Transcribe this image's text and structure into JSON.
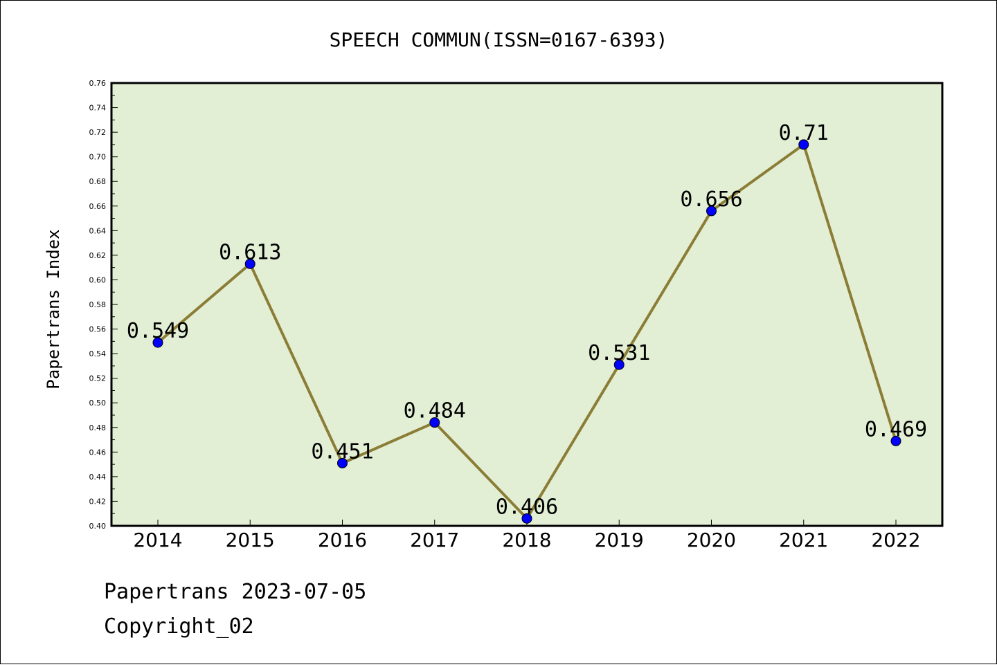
{
  "chart_data": {
    "type": "line",
    "title": "SPEECH COMMUN(ISSN=0167-6393)",
    "xlabel": "",
    "ylabel": "Papertrans Index",
    "categories": [
      "2014",
      "2015",
      "2016",
      "2017",
      "2018",
      "2019",
      "2020",
      "2021",
      "2022"
    ],
    "values": [
      0.549,
      0.613,
      0.451,
      0.484,
      0.406,
      0.531,
      0.656,
      0.71,
      0.469
    ],
    "data_labels": [
      "0.549",
      "0.613",
      "0.451",
      "0.484",
      "0.406",
      "0.531",
      "0.656",
      "0.71",
      "0.469"
    ],
    "ylim": [
      0.4,
      0.76
    ],
    "yticks": [
      "0.40",
      "0.42",
      "0.44",
      "0.46",
      "0.48",
      "0.50",
      "0.52",
      "0.54",
      "0.56",
      "0.58",
      "0.60",
      "0.62",
      "0.64",
      "0.66",
      "0.68",
      "0.70",
      "0.72",
      "0.74",
      "0.76"
    ],
    "grid": false,
    "colors": {
      "plot_background": "#e2efd5",
      "line": "#8b7d35",
      "marker": "#0000ff"
    }
  },
  "footer": {
    "line1": "Papertrans 2023-07-05",
    "line2": "Copyright_02"
  }
}
